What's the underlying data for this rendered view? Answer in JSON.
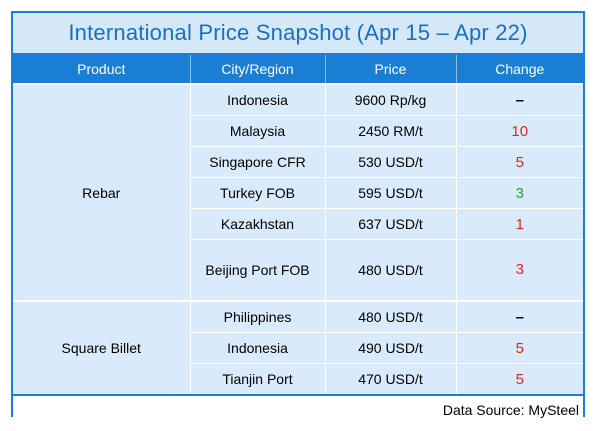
{
  "title": "International Price Snapshot (Apr 15 – Apr 22)",
  "headers": {
    "product": "Product",
    "region": "City/Region",
    "price": "Price",
    "change": "Change"
  },
  "groups": [
    {
      "product": "Rebar",
      "rows": [
        {
          "region": "Indonesia",
          "price": "9600 Rp/kg",
          "change": "–",
          "trend": "flat"
        },
        {
          "region": "Malaysia",
          "price": "2450 RM/t",
          "change": "10",
          "trend": "up"
        },
        {
          "region": "Singapore CFR",
          "price": "530 USD/t",
          "change": "5",
          "trend": "up"
        },
        {
          "region": "Turkey FOB",
          "price": "595 USD/t",
          "change": "3",
          "trend": "down"
        },
        {
          "region": "Kazakhstan",
          "price": "637 USD/t",
          "change": "1",
          "trend": "up"
        },
        {
          "region": "Beijing Port FOB",
          "price": "480 USD/t",
          "change": "3",
          "trend": "up"
        }
      ]
    },
    {
      "product": "Square Billet",
      "rows": [
        {
          "region": "Philippines",
          "price": "480 USD/t",
          "change": "–",
          "trend": "flat"
        },
        {
          "region": "Indonesia",
          "price": "490 USD/t",
          "change": "5",
          "trend": "up"
        },
        {
          "region": "Tianjin Port",
          "price": "470 USD/t",
          "change": "5",
          "trend": "up"
        }
      ]
    }
  ],
  "source": "Data Source: MySteel",
  "colors": {
    "header": "#1a7fd4",
    "title_bg": "#d5e8f8",
    "cell_bg": "#d9ebfa",
    "up": "#e8231a",
    "down": "#2f9b38"
  }
}
